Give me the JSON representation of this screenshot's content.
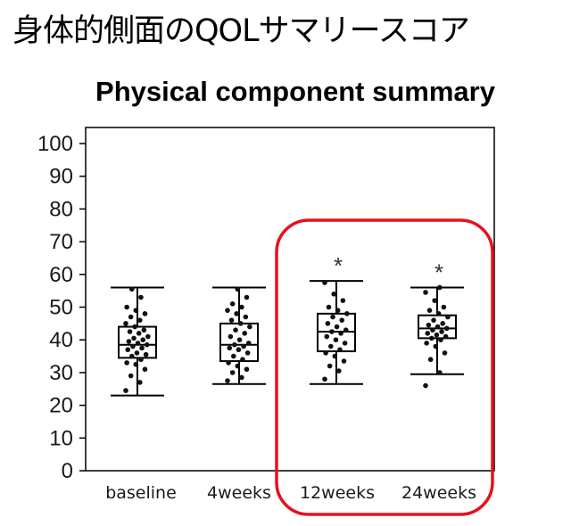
{
  "header": {
    "text": "身体的側面のQOLサマリースコア"
  },
  "chart_data": {
    "type": "box",
    "title": "Physical component summary",
    "xlabel": "",
    "ylabel": "",
    "ylim": [
      0,
      100
    ],
    "yticks": [
      0,
      10,
      20,
      30,
      40,
      50,
      60,
      70,
      80,
      90,
      100
    ],
    "categories": [
      "baseline",
      "4weeks",
      "12weeks",
      "24weeks"
    ],
    "boxes": [
      {
        "min": 23,
        "q1": 34.5,
        "median": 38.5,
        "q3": 44,
        "max": 56,
        "significant": false
      },
      {
        "min": 26.5,
        "q1": 33.5,
        "median": 38.5,
        "q3": 45,
        "max": 56,
        "significant": false
      },
      {
        "min": 26.5,
        "q1": 36.5,
        "median": 42.5,
        "q3": 48,
        "max": 58,
        "significant": true
      },
      {
        "min": 29.5,
        "q1": 40.5,
        "median": 43.5,
        "q3": 47.5,
        "max": 56,
        "significant": true
      }
    ],
    "points": [
      [
        24.5,
        27,
        29,
        31,
        32.5,
        33,
        34,
        35,
        35.5,
        36,
        37,
        37.5,
        38,
        38.5,
        39,
        39.5,
        40,
        40.5,
        41,
        42,
        42.5,
        43,
        44,
        45,
        46,
        47,
        48,
        49,
        50,
        53,
        55.5
      ],
      [
        27.5,
        28.5,
        30,
        31,
        32,
        33,
        34,
        35,
        36,
        37,
        37.5,
        38,
        38.5,
        39,
        40,
        41,
        42,
        43,
        44,
        45,
        46,
        47,
        48,
        49,
        50,
        51,
        53,
        55.5
      ],
      [
        28,
        30.5,
        32,
        33.5,
        35,
        36,
        37,
        38,
        39,
        40,
        41,
        42,
        42.5,
        43,
        44,
        45,
        46,
        47,
        48,
        49,
        50,
        52,
        54,
        57.5
      ],
      [
        26,
        30,
        34,
        36,
        38,
        39,
        40,
        40.5,
        41,
        41.5,
        42,
        42.5,
        43,
        43.5,
        44,
        44.5,
        45,
        46,
        47,
        48,
        49,
        50,
        52,
        54.5,
        56
      ]
    ],
    "significance_marker": "*",
    "highlight": {
      "categories": [
        "12weeks",
        "24weeks"
      ],
      "color": "#e8101c"
    }
  }
}
